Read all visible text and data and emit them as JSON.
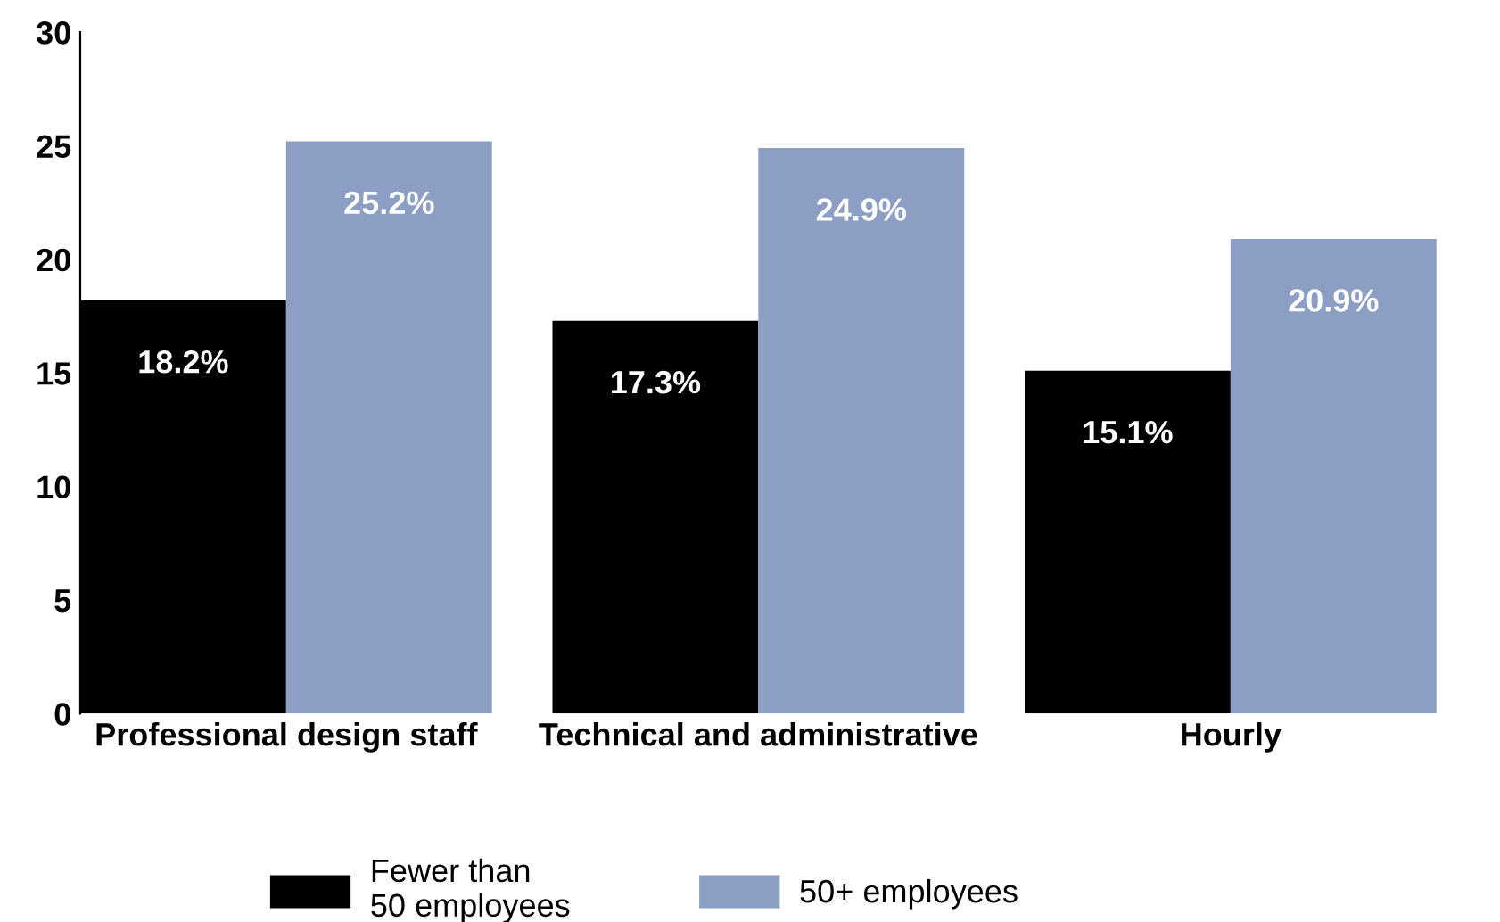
{
  "chart_data": {
    "type": "bar",
    "categories": [
      "Professional design staff",
      "Technical and administrative",
      "Hourly"
    ],
    "series": [
      {
        "name": "Fewer than\n50 employees",
        "color": "#000000",
        "values": [
          18.2,
          17.3,
          15.1
        ],
        "value_labels": [
          "18.2%",
          "17.3%",
          "15.1%"
        ]
      },
      {
        "name": "50+ employees",
        "color": "#8c9ec4",
        "values": [
          25.2,
          24.9,
          20.9
        ],
        "value_labels": [
          "25.2%",
          "24.9%",
          "20.9%"
        ]
      }
    ],
    "ylim": [
      0,
      30
    ],
    "yticks": [
      0,
      5,
      10,
      15,
      20,
      25,
      30
    ],
    "grid": false,
    "legend": "bottom"
  }
}
